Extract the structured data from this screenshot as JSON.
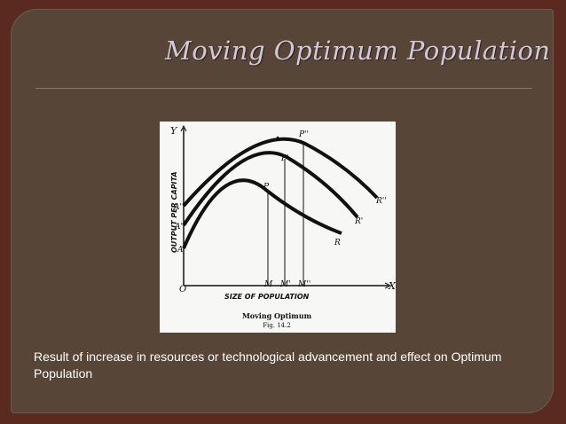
{
  "slide": {
    "title": "Moving Optimum Population",
    "caption": "Result of increase in resources or technological  advancement and effect on Optimum Population"
  },
  "figure": {
    "y_axis_letter": "Y",
    "x_axis_letter": "X",
    "origin_letter": "O",
    "y_axis_label": "OUTPUT PER CAPITA",
    "x_axis_label": "SIZE OF POPULATION",
    "fig_title": "Moving Optimum",
    "fig_number": "Fig. 14.2",
    "curves": [
      {
        "start": "A",
        "peak": "P",
        "end": "R",
        "foot": "M"
      },
      {
        "start": "A'",
        "peak": "P'",
        "end": "R'",
        "foot": "M'"
      },
      {
        "start": "A''",
        "peak": "P''",
        "end": "R''",
        "foot": "M''"
      }
    ]
  },
  "colors": {
    "background": "#5a2a20",
    "panel": "#574538",
    "title": "#d2c8d8",
    "caption": "#ffffff",
    "ink": "#111111"
  }
}
